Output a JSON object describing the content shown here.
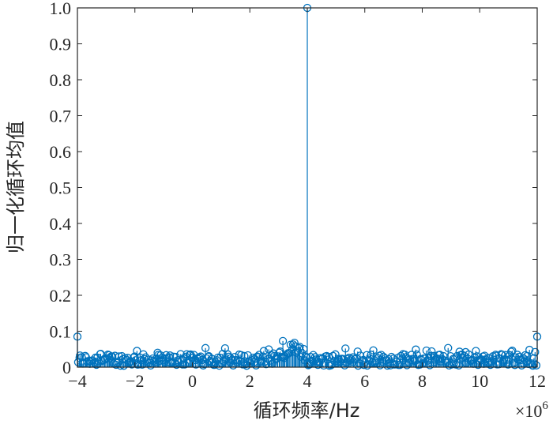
{
  "chart_data": {
    "type": "stem",
    "xlabel": "循环频率/Hz",
    "ylabel": "归一化循环均值",
    "x_exponent_label": "×10",
    "x_exponent_power": "6",
    "xlim": [
      -4,
      12
    ],
    "ylim": [
      0,
      1.0
    ],
    "x_ticks": [
      "−4",
      "−2",
      "0",
      "2",
      "4",
      "6",
      "8",
      "10",
      "12"
    ],
    "x_tick_values": [
      -4,
      -2,
      0,
      2,
      4,
      6,
      8,
      10,
      12
    ],
    "y_ticks": [
      "0",
      "0.1",
      "0.2",
      "0.3",
      "0.4",
      "0.5",
      "0.6",
      "0.7",
      "0.8",
      "0.9",
      "1.0"
    ],
    "y_tick_values": [
      0,
      0.1,
      0.2,
      0.3,
      0.4,
      0.5,
      0.6,
      0.7,
      0.8,
      0.9,
      1.0
    ],
    "series_color": "#0072BD",
    "grid": false,
    "peak": {
      "x": 4,
      "y": 1.0
    },
    "edge_points": [
      {
        "x": -4,
        "y": 0.085
      },
      {
        "x": 12,
        "y": 0.085
      }
    ],
    "noise_level_max": 0.075,
    "noise_level_typical": 0.025,
    "noise_point_count": 400
  }
}
